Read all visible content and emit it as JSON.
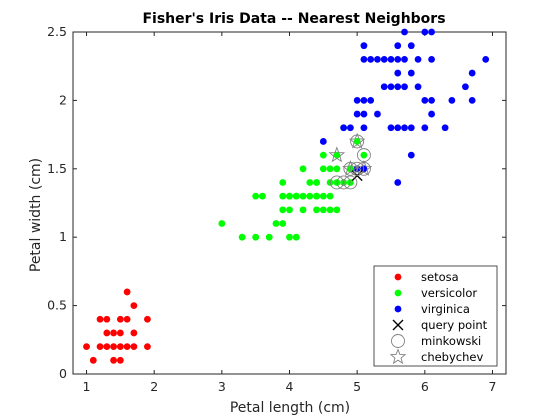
{
  "chart_data": {
    "type": "scatter",
    "title": "Fisher's Iris Data -- Nearest Neighbors",
    "xlabel": "Petal length (cm)",
    "ylabel": "Petal width (cm)",
    "xlim": [
      0.8,
      7.2
    ],
    "ylim": [
      0,
      2.5
    ],
    "xticks": [
      "1",
      "2",
      "3",
      "4",
      "5",
      "6",
      "7"
    ],
    "yticks": [
      "0",
      "0.5",
      "1",
      "1.5",
      "2",
      "2.5"
    ],
    "xtick_values": [
      1,
      2,
      3,
      4,
      5,
      6,
      7
    ],
    "ytick_values": [
      0,
      0.5,
      1,
      1.5,
      2,
      2.5
    ],
    "grid": false,
    "legend_position": "bottom-right",
    "series": [
      {
        "name": "setosa",
        "color": "#ff0000",
        "marker": "dot",
        "points": [
          [
            1.0,
            0.2
          ],
          [
            1.1,
            0.1
          ],
          [
            1.2,
            0.2
          ],
          [
            1.3,
            0.2
          ],
          [
            1.4,
            0.2
          ],
          [
            1.5,
            0.2
          ],
          [
            1.6,
            0.2
          ],
          [
            1.7,
            0.2
          ],
          [
            1.9,
            0.2
          ],
          [
            1.3,
            0.3
          ],
          [
            1.4,
            0.3
          ],
          [
            1.5,
            0.3
          ],
          [
            1.7,
            0.3
          ],
          [
            1.3,
            0.4
          ],
          [
            1.5,
            0.4
          ],
          [
            1.6,
            0.4
          ],
          [
            1.9,
            0.4
          ],
          [
            1.7,
            0.5
          ],
          [
            1.6,
            0.6
          ],
          [
            1.4,
            0.1
          ],
          [
            1.5,
            0.1
          ],
          [
            1.2,
            0.4
          ]
        ]
      },
      {
        "name": "versicolor",
        "color": "#00ff00",
        "marker": "dot",
        "points": [
          [
            3.0,
            1.1
          ],
          [
            3.3,
            1.0
          ],
          [
            3.5,
            1.0
          ],
          [
            3.7,
            1.0
          ],
          [
            3.9,
            1.1
          ],
          [
            4.0,
            1.0
          ],
          [
            4.1,
            1.0
          ],
          [
            3.5,
            1.3
          ],
          [
            3.8,
            1.1
          ],
          [
            3.9,
            1.2
          ],
          [
            4.0,
            1.2
          ],
          [
            4.1,
            1.3
          ],
          [
            4.2,
            1.3
          ],
          [
            4.3,
            1.3
          ],
          [
            4.4,
            1.3
          ],
          [
            4.5,
            1.3
          ],
          [
            4.6,
            1.3
          ],
          [
            4.7,
            1.4
          ],
          [
            4.8,
            1.4
          ],
          [
            4.9,
            1.5
          ],
          [
            3.9,
            1.4
          ],
          [
            4.0,
            1.3
          ],
          [
            4.2,
            1.2
          ],
          [
            4.4,
            1.2
          ],
          [
            4.3,
            1.4
          ],
          [
            4.4,
            1.4
          ],
          [
            4.5,
            1.5
          ],
          [
            4.6,
            1.5
          ],
          [
            4.7,
            1.5
          ],
          [
            4.8,
            1.8
          ],
          [
            4.9,
            1.5
          ],
          [
            5.0,
            1.7
          ],
          [
            5.1,
            1.6
          ],
          [
            4.2,
            1.5
          ],
          [
            4.1,
            1.3
          ],
          [
            3.9,
            1.3
          ],
          [
            4.0,
            1.3
          ],
          [
            4.5,
            1.6
          ],
          [
            4.7,
            1.6
          ],
          [
            4.4,
            1.4
          ],
          [
            3.6,
            1.3
          ],
          [
            4.6,
            1.4
          ],
          [
            4.5,
            1.2
          ],
          [
            4.6,
            1.2
          ],
          [
            4.4,
            1.3
          ],
          [
            4.7,
            1.2
          ],
          [
            4.9,
            1.4
          ],
          [
            4.8,
            1.4
          ]
        ]
      },
      {
        "name": "virginica",
        "color": "#0000ff",
        "marker": "dot",
        "points": [
          [
            4.5,
            1.7
          ],
          [
            4.8,
            1.8
          ],
          [
            4.9,
            1.8
          ],
          [
            5.0,
            1.9
          ],
          [
            5.0,
            2.0
          ],
          [
            5.1,
            2.0
          ],
          [
            5.1,
            1.9
          ],
          [
            5.2,
            2.0
          ],
          [
            5.3,
            1.9
          ],
          [
            5.1,
            2.3
          ],
          [
            5.2,
            2.3
          ],
          [
            5.3,
            2.3
          ],
          [
            5.4,
            2.3
          ],
          [
            5.5,
            2.1
          ],
          [
            5.5,
            2.3
          ],
          [
            5.6,
            2.1
          ],
          [
            5.6,
            2.2
          ],
          [
            5.6,
            2.4
          ],
          [
            5.7,
            2.1
          ],
          [
            5.7,
            2.3
          ],
          [
            5.8,
            2.2
          ],
          [
            5.8,
            1.8
          ],
          [
            5.9,
            2.1
          ],
          [
            5.9,
            2.3
          ],
          [
            6.0,
            2.5
          ],
          [
            6.0,
            1.8
          ],
          [
            6.1,
            2.3
          ],
          [
            6.1,
            2.5
          ],
          [
            6.1,
            1.9
          ],
          [
            6.3,
            1.8
          ],
          [
            6.4,
            2.0
          ],
          [
            6.6,
            2.1
          ],
          [
            6.7,
            2.0
          ],
          [
            6.7,
            2.2
          ],
          [
            6.9,
            2.3
          ],
          [
            5.6,
            1.4
          ],
          [
            5.8,
            1.6
          ],
          [
            5.4,
            2.1
          ],
          [
            5.1,
            2.4
          ],
          [
            5.6,
            1.8
          ],
          [
            5.5,
            1.8
          ],
          [
            5.7,
            2.5
          ],
          [
            6.1,
            2.0
          ],
          [
            5.0,
            1.5
          ],
          [
            5.1,
            1.5
          ],
          [
            5.1,
            1.8
          ],
          [
            5.8,
            2.4
          ],
          [
            5.6,
            2.3
          ],
          [
            5.7,
            1.8
          ],
          [
            6.0,
            2.0
          ]
        ]
      },
      {
        "name": "query point",
        "color": "#000000",
        "marker": "x",
        "points": [
          [
            5.0,
            1.45
          ]
        ]
      },
      {
        "name": "minkowski",
        "color": "#808080",
        "marker": "circle",
        "points": [
          [
            4.7,
            1.4
          ],
          [
            4.8,
            1.4
          ],
          [
            4.9,
            1.5
          ],
          [
            5.0,
            1.5
          ],
          [
            5.1,
            1.5
          ],
          [
            5.0,
            1.7
          ],
          [
            5.1,
            1.6
          ],
          [
            4.9,
            1.4
          ]
        ]
      },
      {
        "name": "chebychev",
        "color": "#808080",
        "marker": "star",
        "points": [
          [
            4.7,
            1.6
          ],
          [
            5.0,
            1.7
          ],
          [
            5.1,
            1.5
          ],
          [
            4.9,
            1.5
          ]
        ]
      }
    ]
  }
}
